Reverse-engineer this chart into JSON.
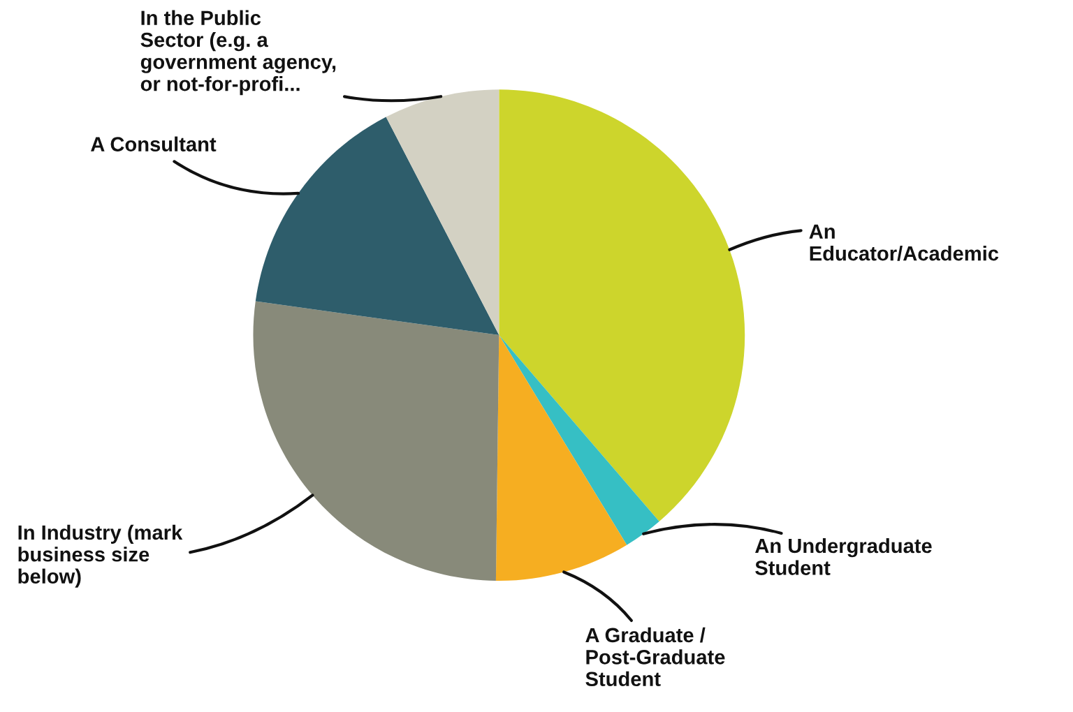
{
  "chart_data": {
    "type": "pie",
    "categories": [
      "An\nEducator/Academic",
      "An Undergraduate\nStudent",
      "A Graduate /\nPost-Graduate\nStudent",
      "In Industry (mark\nbusiness size\nbelow)",
      "A Consultant",
      "In the Public\nSector (e.g. a\ngovernment agency,\nor not-for-profi..."
    ],
    "values": [
      38.7,
      2.6,
      8.9,
      27.0,
      15.2,
      7.6
    ],
    "colors": [
      "#cdd52c",
      "#36bfc4",
      "#f6ae21",
      "#888a7a",
      "#2e5d6b",
      "#d3d1c3"
    ],
    "legend": false
  }
}
